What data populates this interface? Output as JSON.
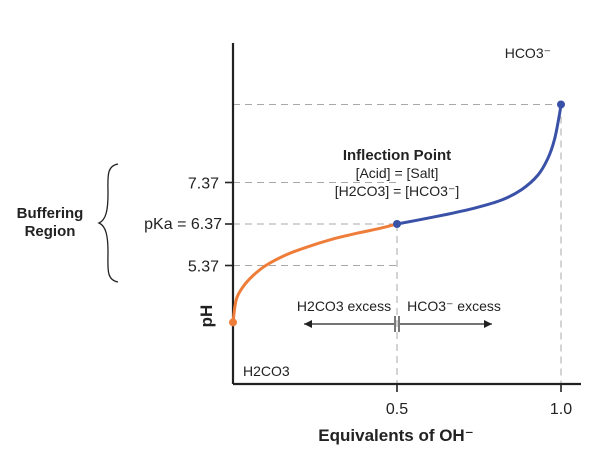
{
  "chart_data": {
    "type": "line",
    "xlabel": "Equivalents of OH⁻",
    "ylabel": "pH",
    "x_ticks": [
      "0.5",
      "1.0"
    ],
    "y_ticks": [
      "5.37",
      "6.37",
      "7.37"
    ],
    "pka_label": "pKa = 6.37",
    "buffering_label": [
      "Buffering",
      "Region"
    ],
    "series": [
      {
        "color": "#ef7d3a",
        "points": [
          [
            0.0,
            4.0
          ],
          [
            0.01,
            4.55
          ],
          [
            0.03,
            4.85
          ],
          [
            0.06,
            5.12
          ],
          [
            0.1,
            5.37
          ],
          [
            0.16,
            5.62
          ],
          [
            0.22,
            5.8
          ],
          [
            0.3,
            6.0
          ],
          [
            0.38,
            6.15
          ],
          [
            0.45,
            6.27
          ],
          [
            0.5,
            6.37
          ]
        ]
      },
      {
        "color": "#3a51a8",
        "points": [
          [
            0.5,
            6.37
          ],
          [
            0.56,
            6.46
          ],
          [
            0.65,
            6.6
          ],
          [
            0.74,
            6.76
          ],
          [
            0.82,
            6.95
          ],
          [
            0.88,
            7.2
          ],
          [
            0.93,
            7.55
          ],
          [
            0.96,
            7.95
          ],
          [
            0.98,
            8.4
          ],
          [
            0.995,
            9.0
          ],
          [
            1.0,
            9.25
          ]
        ]
      }
    ],
    "endpoints": [
      {
        "label": "H2CO3",
        "x": 0.0,
        "y": 4.0,
        "color": "#ef7d3a"
      },
      {
        "label": "HCO3⁻",
        "x": 1.0,
        "y": 9.25,
        "color": "#3a51a8"
      },
      {
        "x": 0.5,
        "y": 6.37,
        "color": "#3a51a8"
      }
    ],
    "annotations": {
      "inflection_title": "Inflection Point",
      "inflection_line1": "[Acid] = [Salt]",
      "inflection_line2": "[H2CO3] = [HCO3⁻]",
      "left_excess": "H2CO3 excess",
      "right_excess": "HCO3⁻ excess"
    },
    "xlim": [
      0,
      1.0
    ],
    "ylim": [
      3.7,
      9.25
    ],
    "grid": "dashed reference lines"
  }
}
